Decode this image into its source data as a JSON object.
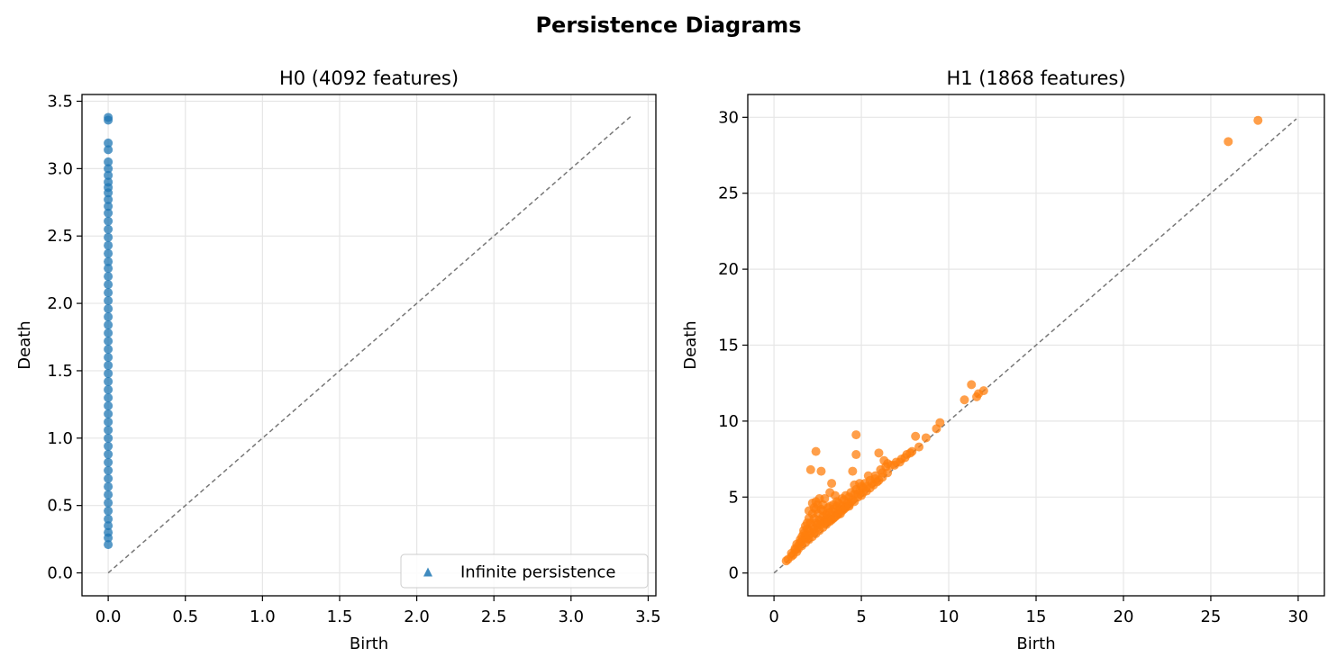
{
  "figure_title": "Persistence Diagrams",
  "chart_data": [
    {
      "type": "scatter",
      "title": "H0 (4092 features)",
      "xlabel": "Birth",
      "ylabel": "Death",
      "xlim": [
        -0.17,
        3.55
      ],
      "ylim": [
        -0.17,
        3.55
      ],
      "xticks": [
        "0.0",
        "0.5",
        "1.0",
        "1.5",
        "2.0",
        "2.5",
        "3.0",
        "3.5"
      ],
      "yticks": [
        "0.0",
        "0.5",
        "1.0",
        "1.5",
        "2.0",
        "2.5",
        "3.0",
        "3.5"
      ],
      "grid": true,
      "diagonal": [
        0,
        3.39
      ],
      "legend": {
        "position": "lower-right",
        "entries": [
          "Infinite persistence"
        ]
      },
      "series": [
        {
          "marker": "circle",
          "color": "#1f77b4",
          "points": [
            [
              0,
              3.38
            ],
            [
              0,
              3.36
            ],
            [
              0,
              3.19
            ],
            [
              0,
              3.14
            ],
            [
              0,
              3.05
            ],
            [
              0,
              3.0
            ],
            [
              0,
              2.95
            ],
            [
              0,
              2.9
            ],
            [
              0,
              2.86
            ],
            [
              0,
              2.82
            ],
            [
              0,
              2.77
            ],
            [
              0,
              2.72
            ],
            [
              0,
              2.67
            ],
            [
              0,
              2.61
            ],
            [
              0,
              2.55
            ],
            [
              0,
              2.49
            ],
            [
              0,
              2.43
            ],
            [
              0,
              2.37
            ],
            [
              0,
              2.31
            ],
            [
              0,
              2.26
            ],
            [
              0,
              2.2
            ],
            [
              0,
              2.14
            ],
            [
              0,
              2.08
            ],
            [
              0,
              2.02
            ],
            [
              0,
              1.96
            ],
            [
              0,
              1.9
            ],
            [
              0,
              1.84
            ],
            [
              0,
              1.78
            ],
            [
              0,
              1.72
            ],
            [
              0,
              1.66
            ],
            [
              0,
              1.6
            ],
            [
              0,
              1.54
            ],
            [
              0,
              1.48
            ],
            [
              0,
              1.42
            ],
            [
              0,
              1.36
            ],
            [
              0,
              1.3
            ],
            [
              0,
              1.24
            ],
            [
              0,
              1.18
            ],
            [
              0,
              1.12
            ],
            [
              0,
              1.06
            ],
            [
              0,
              1.0
            ],
            [
              0,
              0.94
            ],
            [
              0,
              0.88
            ],
            [
              0,
              0.82
            ],
            [
              0,
              0.76
            ],
            [
              0,
              0.7
            ],
            [
              0,
              0.64
            ],
            [
              0,
              0.58
            ],
            [
              0,
              0.52
            ],
            [
              0,
              0.46
            ],
            [
              0,
              0.4
            ],
            [
              0,
              0.35
            ],
            [
              0,
              0.3
            ],
            [
              0,
              0.26
            ],
            [
              0,
              0.21
            ]
          ]
        }
      ]
    },
    {
      "type": "scatter",
      "title": "H1 (1868 features)",
      "xlabel": "Birth",
      "ylabel": "Death",
      "xlim": [
        -1.5,
        31.5
      ],
      "ylim": [
        -1.5,
        31.5
      ],
      "xticks": [
        "0",
        "5",
        "10",
        "15",
        "20",
        "25",
        "30"
      ],
      "yticks": [
        "0",
        "5",
        "10",
        "15",
        "20",
        "25",
        "30"
      ],
      "grid": true,
      "diagonal": [
        0,
        29.9
      ],
      "series": [
        {
          "marker": "circle",
          "color": "#ff7f0e",
          "points": [
            [
              27.7,
              29.8
            ],
            [
              26.0,
              28.4
            ],
            [
              11.3,
              12.4
            ],
            [
              12.0,
              12.0
            ],
            [
              11.7,
              11.8
            ],
            [
              11.6,
              11.6
            ],
            [
              10.9,
              11.4
            ],
            [
              9.5,
              9.9
            ],
            [
              9.3,
              9.5
            ],
            [
              8.7,
              8.9
            ],
            [
              8.1,
              9.0
            ],
            [
              8.3,
              8.3
            ],
            [
              7.9,
              8.0
            ],
            [
              7.6,
              7.8
            ],
            [
              7.3,
              7.5
            ],
            [
              7.0,
              7.3
            ],
            [
              6.7,
              7.1
            ],
            [
              4.7,
              9.1
            ],
            [
              2.4,
              8.0
            ],
            [
              6.0,
              7.9
            ],
            [
              4.7,
              7.8
            ],
            [
              6.3,
              7.4
            ],
            [
              6.5,
              7.2
            ],
            [
              2.1,
              6.8
            ],
            [
              2.7,
              6.7
            ],
            [
              4.5,
              6.7
            ],
            [
              5.4,
              6.4
            ],
            [
              6.2,
              6.6
            ],
            [
              5.8,
              6.2
            ],
            [
              4.6,
              5.8
            ],
            [
              3.3,
              5.9
            ],
            [
              4.9,
              5.9
            ],
            [
              5.1,
              5.6
            ],
            [
              3.5,
              5.1
            ],
            [
              3.2,
              5.3
            ],
            [
              2.9,
              4.9
            ],
            [
              2.4,
              4.7
            ],
            [
              2.2,
              4.6
            ],
            [
              2.5,
              4.5
            ],
            [
              1.8,
              3.1
            ],
            [
              2.0,
              3.6
            ],
            [
              2.6,
              4.9
            ],
            [
              3.7,
              4.6
            ],
            [
              4.0,
              4.8
            ],
            [
              4.3,
              5.0
            ],
            [
              4.6,
              5.2
            ],
            [
              4.9,
              5.4
            ],
            [
              5.3,
              5.7
            ],
            [
              5.6,
              5.9
            ],
            [
              3.2,
              4.4
            ],
            [
              3.6,
              4.4
            ],
            [
              2.8,
              4.1
            ],
            [
              3.0,
              3.9
            ],
            [
              3.9,
              4.4
            ],
            [
              4.2,
              4.6
            ],
            [
              1.5,
              2.2
            ],
            [
              1.7,
              2.6
            ],
            [
              1.9,
              2.9
            ],
            [
              2.1,
              3.3
            ],
            [
              2.3,
              3.6
            ],
            [
              2.5,
              3.9
            ],
            [
              2.7,
              4.2
            ],
            [
              3.4,
              4.2
            ],
            [
              3.8,
              4.2
            ],
            [
              4.1,
              4.4
            ],
            [
              4.4,
              4.7
            ],
            [
              4.8,
              5.0
            ],
            [
              5.1,
              5.3
            ],
            [
              5.5,
              5.6
            ],
            [
              5.9,
              6.0
            ],
            [
              6.2,
              6.3
            ],
            [
              6.5,
              6.6
            ],
            [
              1.2,
              1.6
            ],
            [
              1.3,
              1.9
            ],
            [
              1.5,
              2.0
            ],
            [
              1.6,
              2.4
            ],
            [
              1.8,
              2.5
            ],
            [
              2.0,
              2.8
            ],
            [
              2.2,
              3.1
            ],
            [
              2.4,
              3.3
            ],
            [
              2.6,
              3.5
            ],
            [
              2.8,
              3.7
            ],
            [
              3.0,
              3.8
            ],
            [
              3.2,
              4.0
            ],
            [
              3.5,
              4.0
            ],
            [
              3.7,
              4.1
            ],
            [
              4.0,
              4.2
            ],
            [
              4.3,
              4.4
            ],
            [
              4.6,
              4.7
            ],
            [
              5.0,
              5.1
            ],
            [
              5.3,
              5.4
            ],
            [
              5.7,
              5.8
            ],
            [
              6.0,
              6.1
            ],
            [
              0.7,
              0.8
            ],
            [
              0.8,
              0.9
            ],
            [
              1.0,
              1.1
            ],
            [
              1.1,
              1.2
            ],
            [
              1.3,
              1.4
            ],
            [
              1.4,
              1.6
            ],
            [
              1.6,
              1.8
            ],
            [
              1.8,
              2.0
            ],
            [
              2.0,
              2.2
            ],
            [
              2.2,
              2.4
            ],
            [
              2.4,
              2.6
            ],
            [
              2.6,
              2.8
            ],
            [
              2.8,
              3.0
            ],
            [
              3.0,
              3.2
            ],
            [
              3.2,
              3.4
            ],
            [
              3.4,
              3.6
            ],
            [
              3.6,
              3.8
            ],
            [
              3.8,
              3.9
            ],
            [
              1.9,
              2.3
            ],
            [
              2.1,
              2.6
            ],
            [
              2.3,
              2.9
            ],
            [
              2.5,
              3.2
            ],
            [
              2.7,
              3.4
            ],
            [
              2.9,
              3.5
            ],
            [
              3.1,
              3.6
            ],
            [
              3.3,
              3.8
            ],
            [
              2.0,
              4.1
            ],
            [
              2.3,
              4.3
            ],
            [
              1.7,
              2.8
            ],
            [
              1.9,
              3.3
            ],
            [
              2.2,
              3.9
            ],
            [
              2.4,
              4.2
            ],
            [
              2.8,
              4.5
            ],
            [
              3.1,
              4.3
            ],
            [
              3.4,
              4.5
            ],
            [
              3.6,
              4.7
            ],
            [
              3.9,
              4.9
            ],
            [
              4.1,
              5.1
            ],
            [
              4.4,
              5.3
            ],
            [
              4.7,
              5.5
            ],
            [
              5.0,
              5.7
            ],
            [
              5.2,
              5.9
            ],
            [
              5.5,
              6.1
            ],
            [
              5.8,
              6.4
            ],
            [
              6.1,
              6.8
            ],
            [
              6.4,
              7.0
            ],
            [
              6.9,
              7.1
            ],
            [
              7.2,
              7.3
            ],
            [
              7.5,
              7.6
            ],
            [
              7.8,
              7.9
            ],
            [
              1.0,
              1.3
            ],
            [
              1.2,
              1.5
            ],
            [
              1.4,
              1.8
            ],
            [
              1.6,
              2.1
            ],
            [
              1.8,
              2.3
            ],
            [
              2.0,
              2.5
            ],
            [
              2.3,
              2.7
            ],
            [
              2.5,
              3.0
            ],
            [
              2.7,
              3.2
            ],
            [
              2.9,
              3.3
            ],
            [
              3.1,
              3.4
            ],
            [
              3.3,
              3.5
            ],
            [
              3.5,
              3.7
            ],
            [
              3.7,
              3.9
            ],
            [
              3.9,
              4.1
            ],
            [
              4.1,
              4.3
            ],
            [
              4.3,
              4.5
            ],
            [
              4.5,
              4.8
            ],
            [
              4.8,
              5.2
            ]
          ]
        }
      ]
    }
  ]
}
